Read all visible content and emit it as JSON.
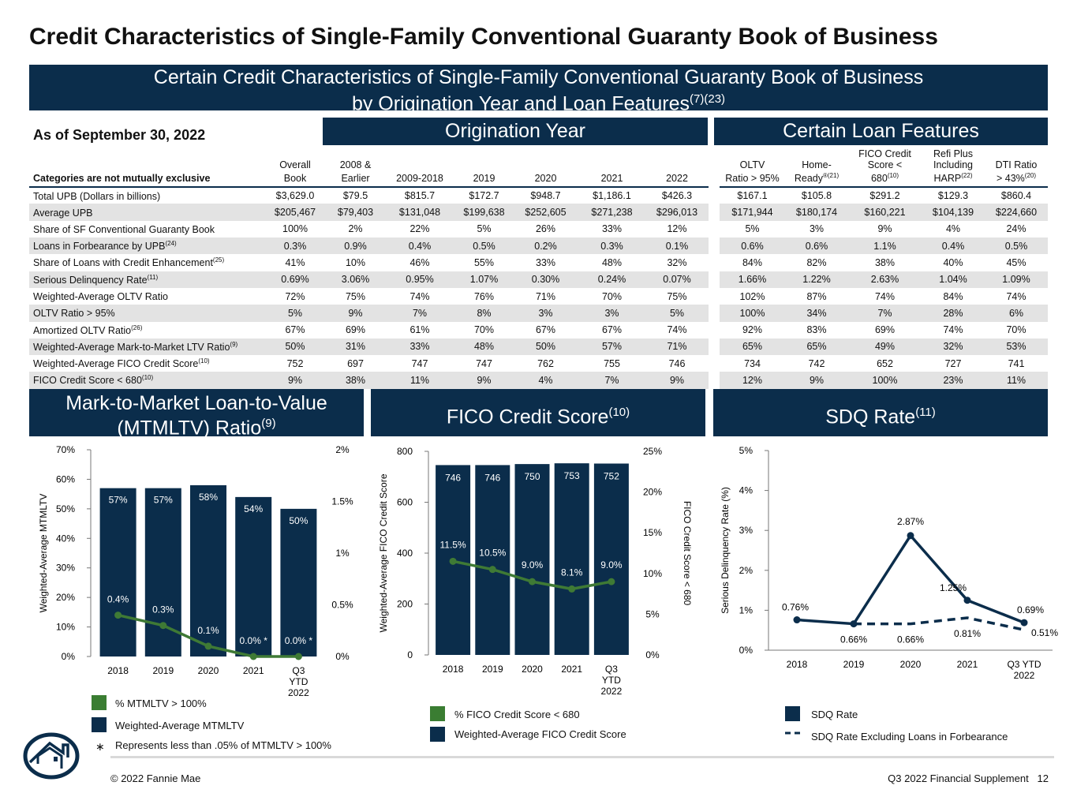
{
  "title": "Credit Characteristics of Single-Family Conventional Guaranty Book of Business",
  "top_band": {
    "line1": "Certain Credit Characteristics of Single-Family Conventional Guaranty Book of Business",
    "line2": "by Origination Year and Loan Features",
    "sup": "(7)(23)"
  },
  "as_of": "As of September 30, 2022",
  "origination_band": "Origination Year",
  "features_band": "Certain Loan Features",
  "table": {
    "corner": "Categories are not mutually exclusive",
    "columns": [
      {
        "l1": "Overall",
        "l2": "Book",
        "sup": ""
      },
      {
        "l1": "2008 &",
        "l2": "Earlier",
        "sup": ""
      },
      {
        "l1": "",
        "l2": "2009-2018",
        "sup": ""
      },
      {
        "l1": "",
        "l2": "2019",
        "sup": ""
      },
      {
        "l1": "",
        "l2": "2020",
        "sup": ""
      },
      {
        "l1": "",
        "l2": "2021",
        "sup": ""
      },
      {
        "l1": "",
        "l2": "2022",
        "sup": ""
      },
      {
        "l1": "OLTV",
        "l2": "Ratio > 95%",
        "sup": ""
      },
      {
        "l1": "Home-",
        "l2": "Ready",
        "sup": "®(21)"
      },
      {
        "l1": "FICO Credit Score <",
        "l2": "680",
        "sup": "(10)"
      },
      {
        "l1": "Refi Plus Including",
        "l2": "HARP",
        "sup": "(22)"
      },
      {
        "l1": "DTI Ratio",
        "l2": "> 43%",
        "sup": "(20)"
      }
    ],
    "rows": [
      {
        "label": "Total UPB (Dollars in billions)",
        "sup": "",
        "values": [
          "$3,629.0",
          "$79.5",
          "$815.7",
          "$172.7",
          "$948.7",
          "$1,186.1",
          "$426.3",
          "$167.1",
          "$105.8",
          "$291.2",
          "$129.3",
          "$860.4"
        ]
      },
      {
        "label": "Average UPB",
        "sup": "",
        "values": [
          "$205,467",
          "$79,403",
          "$131,048",
          "$199,638",
          "$252,605",
          "$271,238",
          "$296,013",
          "$171,944",
          "$180,174",
          "$160,221",
          "$104,139",
          "$224,660"
        ]
      },
      {
        "label": "Share of SF Conventional Guaranty Book",
        "sup": "",
        "values": [
          "100%",
          "2%",
          "22%",
          "5%",
          "26%",
          "33%",
          "12%",
          "5%",
          "3%",
          "9%",
          "4%",
          "24%"
        ]
      },
      {
        "label": "Loans in Forbearance by UPB",
        "sup": "(24)",
        "values": [
          "0.3%",
          "0.9%",
          "0.4%",
          "0.5%",
          "0.2%",
          "0.3%",
          "0.1%",
          "0.6%",
          "0.6%",
          "1.1%",
          "0.4%",
          "0.5%"
        ]
      },
      {
        "label": "Share of Loans with Credit Enhancement",
        "sup": "(25)",
        "values": [
          "41%",
          "10%",
          "46%",
          "55%",
          "33%",
          "48%",
          "32%",
          "84%",
          "82%",
          "38%",
          "40%",
          "45%"
        ]
      },
      {
        "label": "Serious Delinquency Rate",
        "sup": "(11)",
        "values": [
          "0.69%",
          "3.06%",
          "0.95%",
          "1.07%",
          "0.30%",
          "0.24%",
          "0.07%",
          "1.66%",
          "1.22%",
          "2.63%",
          "1.04%",
          "1.09%"
        ]
      },
      {
        "label": "Weighted-Average OLTV Ratio",
        "sup": "",
        "values": [
          "72%",
          "75%",
          "74%",
          "76%",
          "71%",
          "70%",
          "75%",
          "102%",
          "87%",
          "74%",
          "84%",
          "74%"
        ]
      },
      {
        "label": "OLTV Ratio > 95%",
        "sup": "",
        "values": [
          "5%",
          "9%",
          "7%",
          "8%",
          "3%",
          "3%",
          "5%",
          "100%",
          "34%",
          "7%",
          "28%",
          "6%"
        ]
      },
      {
        "label": "Amortized OLTV Ratio",
        "sup": "(26)",
        "values": [
          "67%",
          "69%",
          "61%",
          "70%",
          "67%",
          "67%",
          "74%",
          "92%",
          "83%",
          "69%",
          "74%",
          "70%"
        ]
      },
      {
        "label": "Weighted-Average Mark-to-Market LTV Ratio",
        "sup": "(9)",
        "values": [
          "50%",
          "31%",
          "33%",
          "48%",
          "50%",
          "57%",
          "71%",
          "65%",
          "65%",
          "49%",
          "32%",
          "53%"
        ]
      },
      {
        "label": "Weighted-Average FICO Credit Score",
        "sup": "(10)",
        "values": [
          "752",
          "697",
          "747",
          "747",
          "762",
          "755",
          "746",
          "734",
          "742",
          "652",
          "727",
          "741"
        ]
      },
      {
        "label": "FICO Credit Score < 680",
        "sup": "(10)",
        "values": [
          "9%",
          "38%",
          "11%",
          "9%",
          "4%",
          "7%",
          "9%",
          "12%",
          "9%",
          "100%",
          "23%",
          "11%"
        ]
      }
    ]
  },
  "sections": {
    "mtm": {
      "line1": "Mark-to-Market Loan-to-Value",
      "line2": "(MTMLTV) Ratio",
      "sup": "(9)"
    },
    "fico": {
      "title": "FICO Credit Score",
      "sup": "(10)"
    },
    "sdq": {
      "title": "SDQ Rate",
      "sup": "(11)"
    }
  },
  "colors": {
    "navy": "#0b2d4b",
    "green": "#3a7d32",
    "green_line": "#3f7a35"
  },
  "chart_data": [
    {
      "type": "bar",
      "id": "mtmltv",
      "categories": [
        "2018",
        "2019",
        "2020",
        "2021",
        "Q3 YTD 2022"
      ],
      "series": [
        {
          "name": "Weighted-Average MTMLTV",
          "values": [
            57,
            57,
            58,
            54,
            50
          ],
          "labels": [
            "57%",
            "57%",
            "58%",
            "54%",
            "50%"
          ],
          "axis": "left"
        },
        {
          "name": "% MTMLTV > 100%",
          "type": "line",
          "values": [
            0.4,
            0.3,
            0.1,
            0.0,
            0.0
          ],
          "labels": [
            "0.4%",
            "0.3%",
            "0.1%",
            "0.0% *",
            "0.0% *"
          ],
          "axis": "right"
        }
      ],
      "ylabel": "Weighted-Average MTMLTV",
      "left_ticks": [
        "0%",
        "10%",
        "20%",
        "30%",
        "40%",
        "50%",
        "60%",
        "70%"
      ],
      "ylim": [
        0,
        70
      ],
      "right_ticks": [
        "0%",
        "0.5%",
        "1%",
        "1.5%",
        "2%"
      ],
      "y2lim": [
        0,
        2
      ],
      "legend": [
        "% MTMLTV > 100%",
        "Weighted-Average MTMLTV"
      ],
      "footnote_mark": "∗",
      "footnote": "Represents less than .05% of MTMLTV > 100%"
    },
    {
      "type": "bar",
      "id": "fico",
      "categories": [
        "2018",
        "2019",
        "2020",
        "2021",
        "Q3 YTD 2022"
      ],
      "series": [
        {
          "name": "Weighted-Average FICO Credit Score",
          "values": [
            746,
            746,
            750,
            753,
            752
          ],
          "labels": [
            "746",
            "746",
            "750",
            "753",
            "752"
          ],
          "axis": "left"
        },
        {
          "name": "% FICO Credit Score < 680",
          "type": "line",
          "values": [
            11.5,
            10.5,
            9.0,
            8.1,
            9.0
          ],
          "labels": [
            "11.5%",
            "10.5%",
            "9.0%",
            "8.1%",
            "9.0%"
          ],
          "axis": "right"
        }
      ],
      "ylabel": "Weighted-Average FICO Credit Score",
      "y2label": "FICO Credit Score < 680",
      "left_ticks": [
        "0",
        "200",
        "400",
        "600",
        "800"
      ],
      "ylim": [
        0,
        800
      ],
      "right_ticks": [
        "0%",
        "5%",
        "10%",
        "15%",
        "20%",
        "25%"
      ],
      "y2lim": [
        0,
        25
      ],
      "legend": [
        "% FICO Credit Score < 680",
        "Weighted-Average FICO Credit Score"
      ]
    },
    {
      "type": "line",
      "id": "sdq",
      "categories": [
        "2018",
        "2019",
        "2020",
        "2021",
        "Q3 YTD 2022"
      ],
      "series": [
        {
          "name": "SDQ Rate",
          "values": [
            0.76,
            0.66,
            2.87,
            1.25,
            0.69
          ],
          "labels": [
            "0.76%",
            "0.66%",
            "2.87%",
            "1.25%",
            "0.69%"
          ]
        },
        {
          "name": "SDQ Rate Excluding Loans in Forbearance",
          "dashed": true,
          "values": [
            null,
            0.66,
            0.66,
            0.81,
            0.51
          ],
          "labels": [
            "",
            "",
            "",
            "0.81%",
            "0.51%"
          ]
        }
      ],
      "ylabel": "Serious Delinquency Rate (%)",
      "left_ticks": [
        "0%",
        "1%",
        "2%",
        "3%",
        "4%",
        "5%"
      ],
      "ylim": [
        0,
        5
      ],
      "legend": [
        "SDQ Rate",
        "SDQ Rate Excluding Loans in Forbearance"
      ]
    }
  ],
  "footer": {
    "copyright": "© 2022 Fannie Mae",
    "supplement": "Q3 2022 Financial Supplement",
    "page": "12"
  }
}
